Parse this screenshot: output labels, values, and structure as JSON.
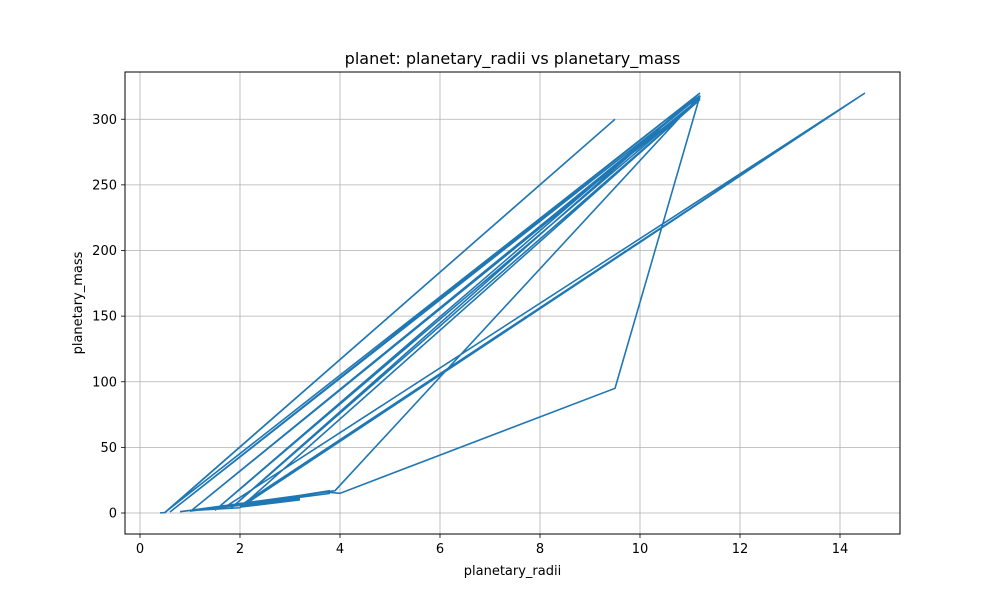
{
  "chart_data": {
    "type": "line",
    "title": "planet: planetary_radii vs planetary_mass",
    "xlabel": "planetary_radii",
    "ylabel": "planetary_mass",
    "xlim": [
      -0.3,
      15.2
    ],
    "ylim": [
      -16,
      336
    ],
    "xticks": [
      0,
      2,
      4,
      6,
      8,
      10,
      12,
      14
    ],
    "yticks": [
      0,
      50,
      100,
      150,
      200,
      250,
      300
    ],
    "grid": true,
    "legend": "none",
    "series": [
      {
        "color": "#1f77b4",
        "x": [
          0.4,
          0.5,
          9.5,
          0.5,
          11.2,
          0.6,
          11.2,
          1.0,
          11.2,
          1.5,
          11.2,
          1.8,
          11.2,
          2.0,
          14.5,
          1.7,
          14.5,
          2.0,
          3.2,
          2.0,
          3.8,
          1.8,
          3.8,
          0.8,
          3.9,
          11.2,
          9.5,
          4.0,
          3.7,
          1.0,
          3.2,
          2.2,
          3.0,
          1.1,
          2.0
        ],
        "y": [
          0.1,
          0.3,
          300,
          0.5,
          320,
          0.8,
          318,
          1.0,
          316,
          2.0,
          320,
          3.0,
          315,
          4.0,
          320,
          4.5,
          320,
          5.5,
          10.0,
          4.5,
          17.0,
          5.0,
          15.0,
          1.0,
          17.0,
          318,
          95,
          15,
          16,
          1.5,
          11.0,
          6.0,
          10.0,
          2.0,
          4.0
        ]
      }
    ]
  }
}
